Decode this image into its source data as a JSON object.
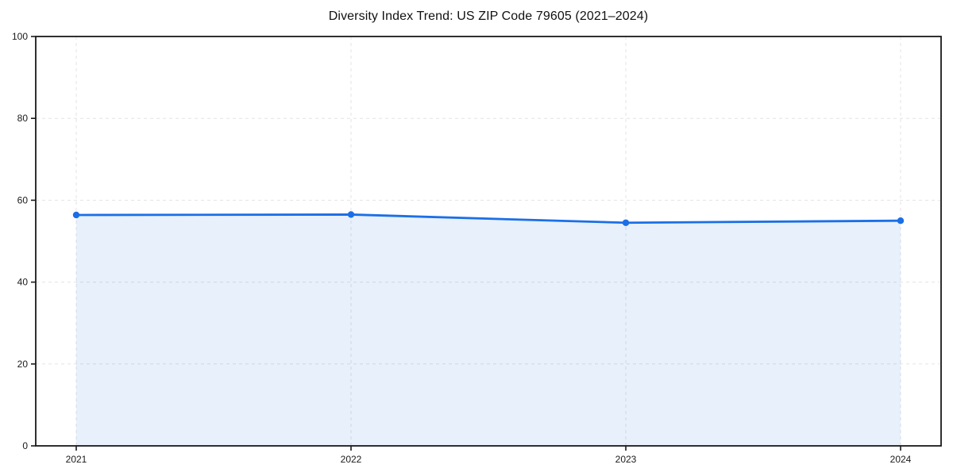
{
  "page": {
    "background_color": "#ffffff"
  },
  "chart_data": {
    "type": "area",
    "title": "Diversity Index Trend: US ZIP Code 79605 (2021–2024)",
    "categories": [
      "2021",
      "2022",
      "2023",
      "2024"
    ],
    "series": [
      {
        "name": "Diversity Index",
        "values": [
          56.4,
          56.5,
          54.5,
          55.0
        ]
      }
    ],
    "xlabel": "",
    "ylabel": "",
    "ylim": [
      0,
      100
    ],
    "yticks": [
      0,
      20,
      40,
      60,
      80,
      100
    ],
    "grid": true,
    "grid_style": "dashed",
    "legend_position": "none",
    "marker": "circle",
    "colors": {
      "line": "#1b6fe6",
      "marker": "#1b6fe6",
      "fill": "#1b6fe6",
      "fill_opacity": 0.1,
      "grid": "#e3e3e3",
      "axis": "#1a1a1a",
      "tick_label": "#1a1a1a",
      "title": "#111111"
    }
  }
}
